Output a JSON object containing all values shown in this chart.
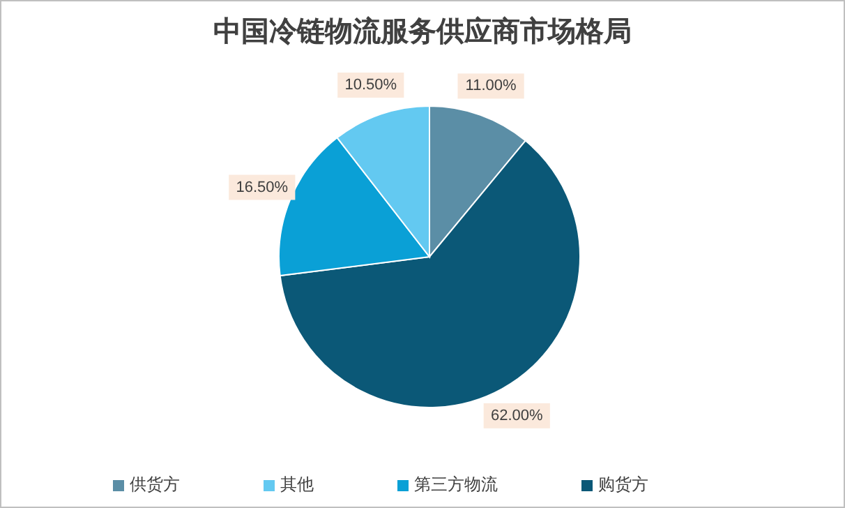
{
  "chart_data": {
    "type": "pie",
    "title": "中国冷链物流服务供应商市场格局",
    "categories": [
      "供货方",
      "购货方",
      "第三方物流",
      "其他"
    ],
    "values": [
      11,
      62,
      16.5,
      10.5
    ],
    "colors": [
      "#5b8ea6",
      "#0b5877",
      "#0aa0d6",
      "#63c9f1"
    ],
    "value_labels": [
      "11.00%",
      "62.00%",
      "16.50%",
      "10.50%"
    ],
    "legend": "bottom"
  }
}
